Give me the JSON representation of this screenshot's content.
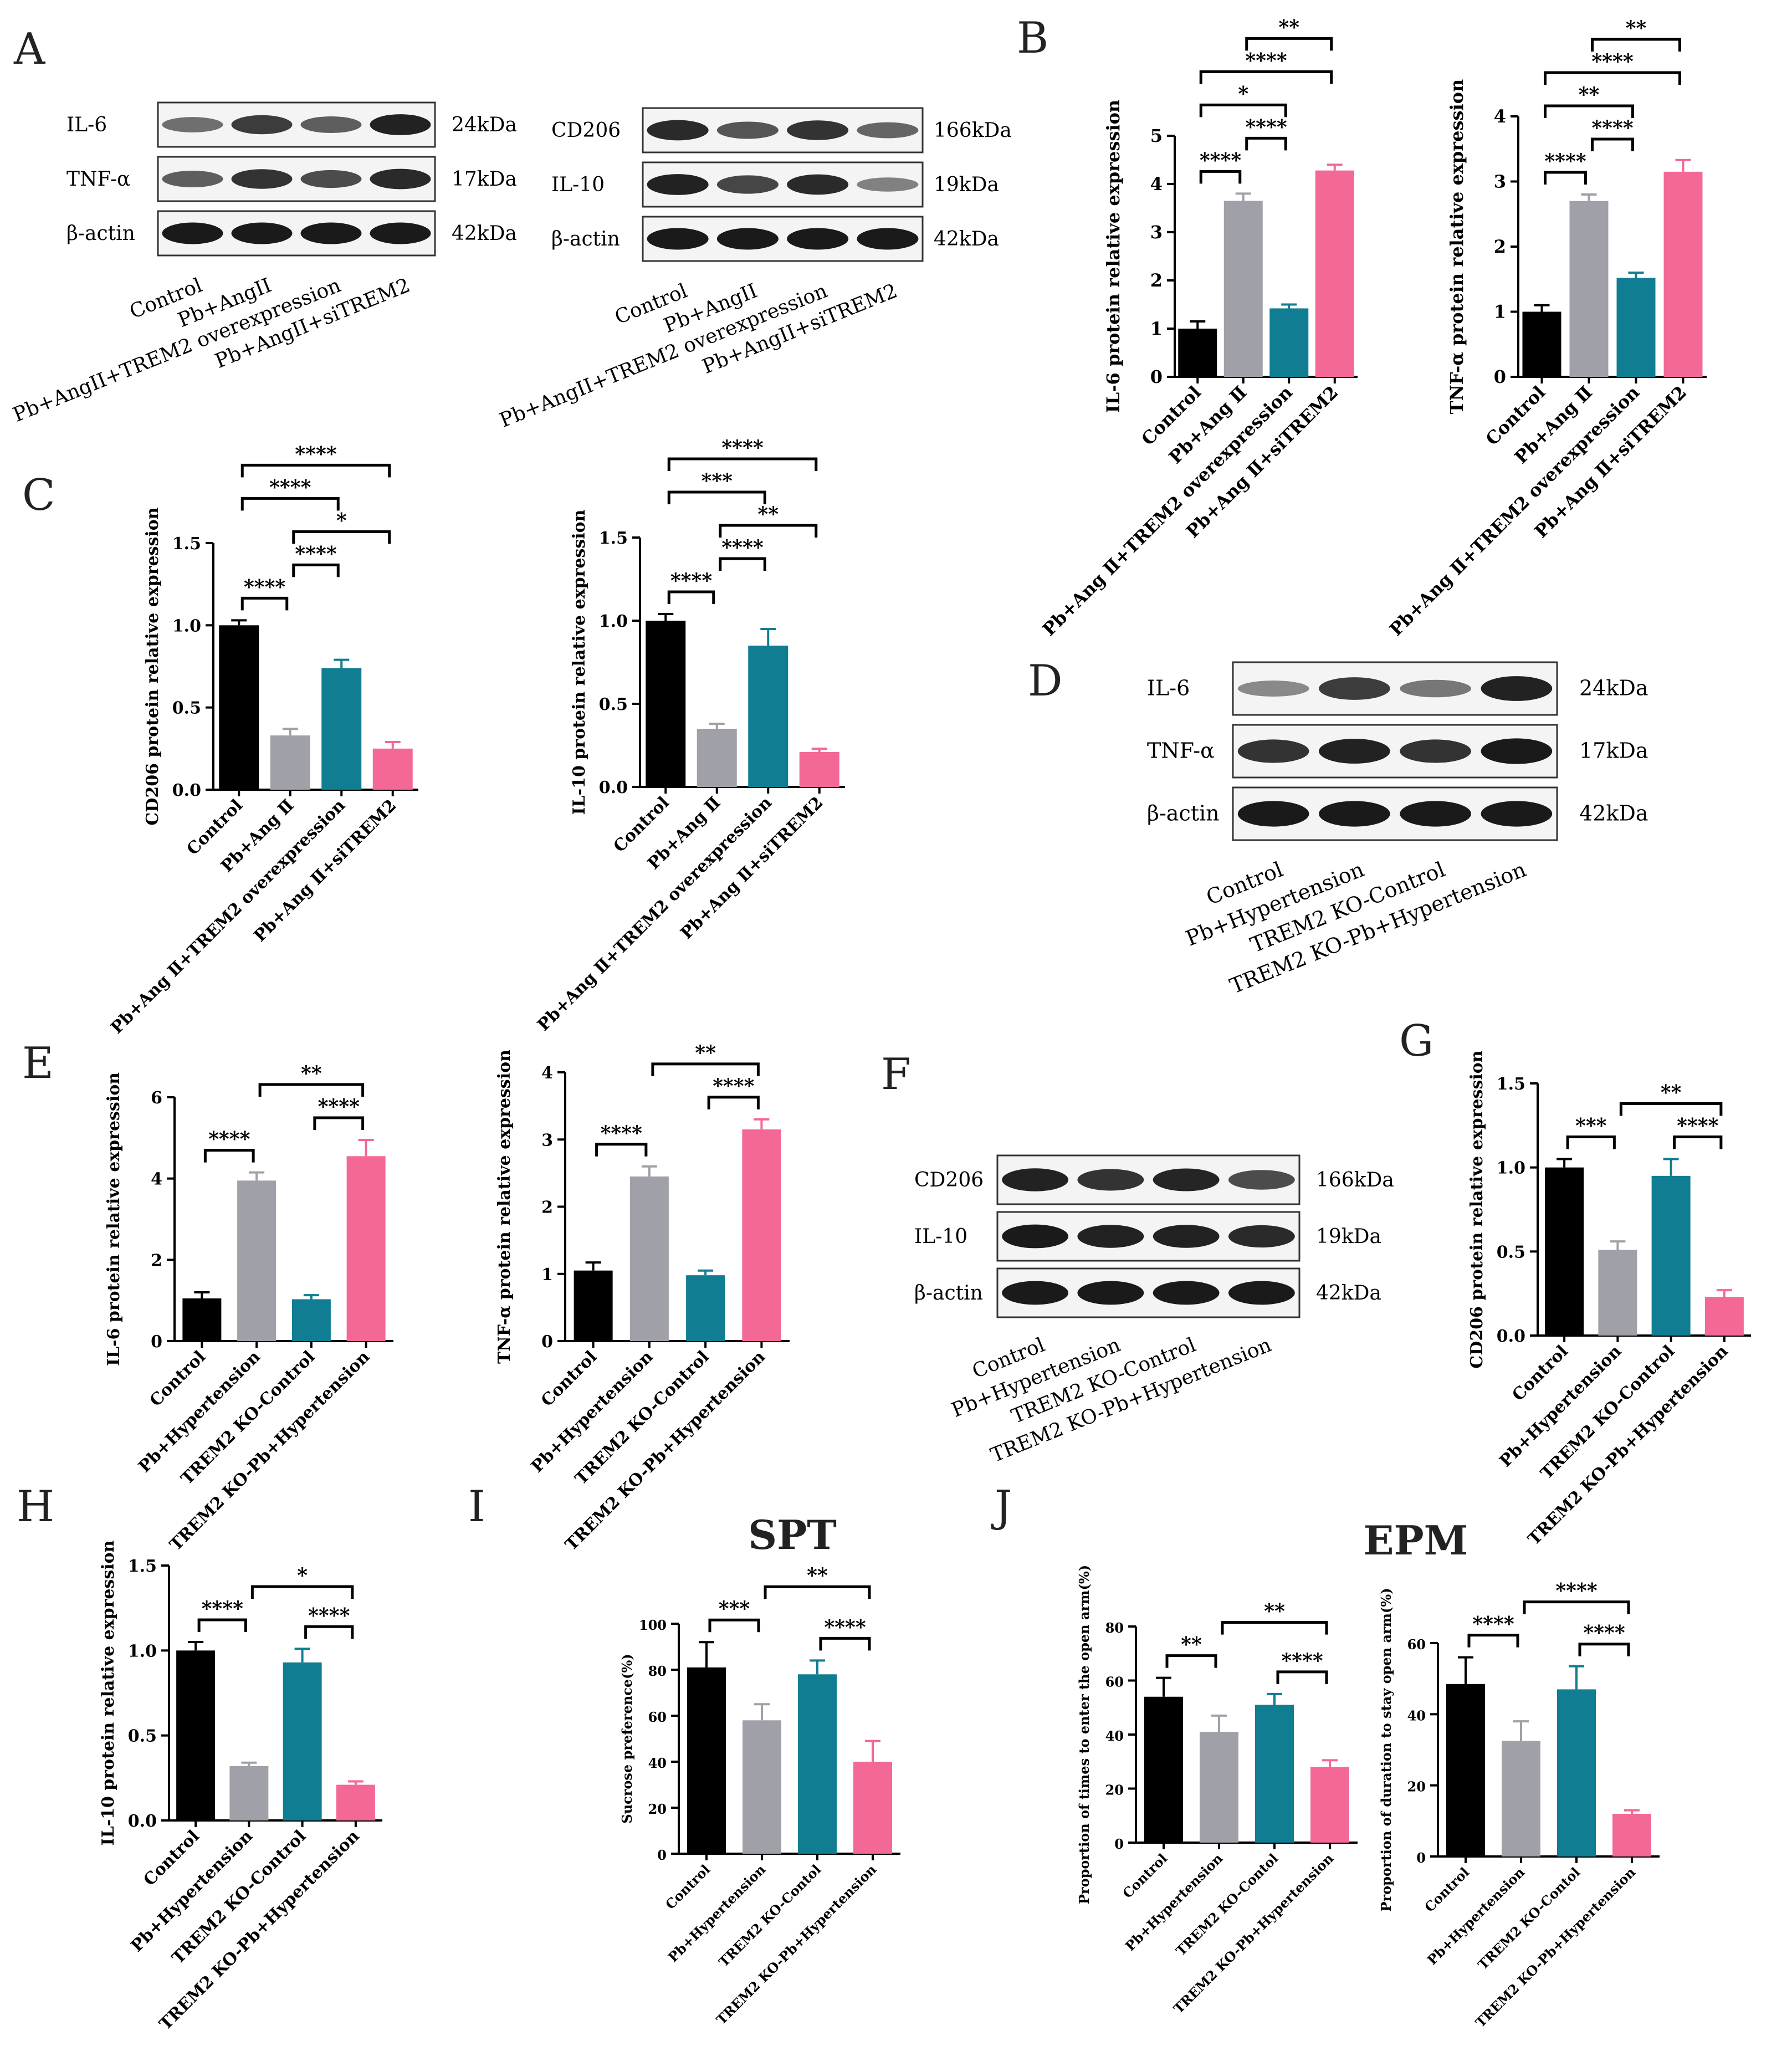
{
  "colors": {
    "black": "#000000",
    "grey": "#A0A0A8",
    "teal": "#117D92",
    "pink": "#F46895",
    "band": "#111111"
  },
  "blots": [
    {
      "panel": "A",
      "rows": [
        {
          "label": "IL-6",
          "kda": "24kDa",
          "int": [
            0.45,
            0.75,
            0.55,
            0.9
          ]
        },
        {
          "label": "TNF-α",
          "kda": "17kDa",
          "int": [
            0.55,
            0.8,
            0.65,
            0.85
          ]
        },
        {
          "label": "β-actin",
          "kda": "42kDa",
          "int": [
            0.95,
            0.95,
            0.95,
            0.95
          ]
        }
      ],
      "lanes": [
        "Control",
        "Pb+AngII",
        "Pb+AngII+TREM2  overexpression",
        "Pb+AngII+siTREM2"
      ]
    },
    {
      "panel": "",
      "rows": [
        {
          "label": "CD206",
          "kda": "166kDa",
          "int": [
            0.85,
            0.6,
            0.8,
            0.5
          ]
        },
        {
          "label": "IL-10",
          "kda": "19kDa",
          "int": [
            0.9,
            0.7,
            0.85,
            0.35
          ]
        },
        {
          "label": "β-actin",
          "kda": "42kDa",
          "int": [
            0.95,
            0.95,
            0.95,
            0.95
          ]
        }
      ],
      "lanes": [
        "Control",
        "Pb+AngII",
        "Pb+AngII+TREM2  overexpression",
        "Pb+AngII+siTREM2"
      ]
    },
    {
      "panel": "D",
      "rows": [
        {
          "label": "IL-6",
          "kda": "24kDa",
          "int": [
            0.3,
            0.75,
            0.4,
            0.9
          ]
        },
        {
          "label": "TNF-α",
          "kda": "17kDa",
          "int": [
            0.8,
            0.9,
            0.8,
            0.95
          ]
        },
        {
          "label": "β-actin",
          "kda": "42kDa",
          "int": [
            0.95,
            0.95,
            0.95,
            0.95
          ]
        }
      ],
      "lanes": [
        "Control",
        "Pb+Hypertension",
        "TREM2 KO-Control",
        "TREM2 KO-Pb+Hypertension"
      ]
    },
    {
      "panel": "F",
      "rows": [
        {
          "label": "CD206",
          "kda": "166kDa",
          "int": [
            0.9,
            0.8,
            0.88,
            0.65
          ]
        },
        {
          "label": "IL-10",
          "kda": "19kDa",
          "int": [
            0.95,
            0.9,
            0.9,
            0.85
          ]
        },
        {
          "label": "β-actin",
          "kda": "42kDa",
          "int": [
            0.95,
            0.95,
            0.95,
            0.95
          ]
        }
      ],
      "lanes": [
        "Control",
        "Pb+Hypertension",
        "TREM2 KO-Control",
        "TREM2 KO-Pb+Hypertension"
      ]
    }
  ],
  "chart_data": [
    {
      "panel": "B",
      "type": "bar",
      "ylabel": "IL-6 protein relative expression",
      "ylim": [
        0,
        5
      ],
      "ticks": [
        "0",
        "1",
        "2",
        "3",
        "4",
        "5"
      ],
      "categories": [
        "Control",
        "Pb+Ang Ⅱ",
        "Pb+Ang Ⅱ+TREM2 overexpression",
        "Pb+Ang Ⅱ+siTREM2"
      ],
      "values": [
        1.0,
        3.65,
        1.42,
        4.28
      ],
      "errors": [
        0.15,
        0.15,
        0.08,
        0.12
      ],
      "sig": [
        {
          "a": 0,
          "b": 1,
          "text": "****"
        },
        {
          "a": 1,
          "b": 2,
          "text": "****"
        },
        {
          "a": 0,
          "b": 2,
          "text": "*"
        },
        {
          "a": 0,
          "b": 3,
          "text": "****"
        },
        {
          "a": 1,
          "b": 3,
          "text": "**"
        }
      ]
    },
    {
      "panel": "",
      "type": "bar",
      "ylabel": "TNF-α protein relative expression",
      "ylim": [
        0,
        4
      ],
      "ticks": [
        "0",
        "1",
        "2",
        "3",
        "4"
      ],
      "categories": [
        "Control",
        "Pb+Ang Ⅱ",
        "Pb+Ang Ⅱ+TREM2 overexpression",
        "Pb+Ang Ⅱ+siTREM2"
      ],
      "values": [
        1.0,
        2.7,
        1.52,
        3.15
      ],
      "errors": [
        0.1,
        0.1,
        0.08,
        0.18
      ],
      "sig": [
        {
          "a": 0,
          "b": 1,
          "text": "****"
        },
        {
          "a": 1,
          "b": 2,
          "text": "****"
        },
        {
          "a": 0,
          "b": 2,
          "text": "**"
        },
        {
          "a": 0,
          "b": 3,
          "text": "****"
        },
        {
          "a": 1,
          "b": 3,
          "text": "**"
        }
      ]
    },
    {
      "panel": "C",
      "type": "bar",
      "ylabel": "CD206 protein relative expression",
      "ylim": [
        0,
        1.5
      ],
      "ticks": [
        "0.0",
        "0.5",
        "1.0",
        "1.5"
      ],
      "categories": [
        "Control",
        "Pb+Ang Ⅱ",
        "Pb+Ang Ⅱ+TREM2 overexpression",
        "Pb+Ang Ⅱ+siTREM2"
      ],
      "values": [
        1.0,
        0.33,
        0.74,
        0.25
      ],
      "errors": [
        0.03,
        0.04,
        0.05,
        0.04
      ],
      "sig": [
        {
          "a": 0,
          "b": 1,
          "text": "****"
        },
        {
          "a": 1,
          "b": 2,
          "text": "****"
        },
        {
          "a": 1,
          "b": 3,
          "text": "*"
        },
        {
          "a": 0,
          "b": 2,
          "text": "****"
        },
        {
          "a": 0,
          "b": 3,
          "text": "****"
        }
      ]
    },
    {
      "panel": "",
      "type": "bar",
      "ylabel": "IL-10 protein relative expression",
      "ylim": [
        0,
        1.5
      ],
      "ticks": [
        "0.0",
        "0.5",
        "1.0",
        "1.5"
      ],
      "categories": [
        "Control",
        "Pb+Ang Ⅱ",
        "Pb+Ang Ⅱ+TREM2 overexpression",
        "Pb+Ang Ⅱ+siTREM2"
      ],
      "values": [
        1.0,
        0.35,
        0.85,
        0.21
      ],
      "errors": [
        0.04,
        0.03,
        0.1,
        0.02
      ],
      "sig": [
        {
          "a": 0,
          "b": 1,
          "text": "****"
        },
        {
          "a": 1,
          "b": 2,
          "text": "****"
        },
        {
          "a": 1,
          "b": 3,
          "text": "**"
        },
        {
          "a": 0,
          "b": 2,
          "text": "***"
        },
        {
          "a": 0,
          "b": 3,
          "text": "****"
        }
      ]
    },
    {
      "panel": "E",
      "type": "bar",
      "ylabel": "IL-6 protein relative expression",
      "ylim": [
        0,
        6
      ],
      "ticks": [
        "0",
        "2",
        "4",
        "6"
      ],
      "categories": [
        "Control",
        "Pb+Hypertension",
        "TREM2 KO-Control",
        "TREM2 KO-Pb+Hypertension"
      ],
      "values": [
        1.05,
        3.95,
        1.03,
        4.55
      ],
      "errors": [
        0.15,
        0.2,
        0.1,
        0.4
      ],
      "sig": [
        {
          "a": 0,
          "b": 1,
          "text": "****"
        },
        {
          "a": 2,
          "b": 3,
          "text": "****"
        },
        {
          "a": 1,
          "b": 3,
          "text": "**"
        }
      ]
    },
    {
      "panel": "",
      "type": "bar",
      "ylabel": "TNF-α protein relative expression",
      "ylim": [
        0,
        4
      ],
      "ticks": [
        "0",
        "1",
        "2",
        "3",
        "4"
      ],
      "categories": [
        "Control",
        "Pb+Hypertension",
        "TREM2 KO-Control",
        "TREM2 KO-Pb+Hypertension"
      ],
      "values": [
        1.05,
        2.45,
        0.98,
        3.15
      ],
      "errors": [
        0.12,
        0.15,
        0.07,
        0.15
      ],
      "sig": [
        {
          "a": 0,
          "b": 1,
          "text": "****"
        },
        {
          "a": 2,
          "b": 3,
          "text": "****"
        },
        {
          "a": 1,
          "b": 3,
          "text": "**"
        }
      ]
    },
    {
      "panel": "G",
      "type": "bar",
      "ylabel": "CD206 protein relative expression",
      "ylim": [
        0,
        1.5
      ],
      "ticks": [
        "0.0",
        "0.5",
        "1.0",
        "1.5"
      ],
      "categories": [
        "Control",
        "Pb+Hypertension",
        "TREM2 KO-Control",
        "TREM2 KO-Pb+Hypertension"
      ],
      "values": [
        1.0,
        0.51,
        0.95,
        0.23
      ],
      "errors": [
        0.05,
        0.05,
        0.1,
        0.04
      ],
      "sig": [
        {
          "a": 0,
          "b": 1,
          "text": "***"
        },
        {
          "a": 2,
          "b": 3,
          "text": "****"
        },
        {
          "a": 1,
          "b": 3,
          "text": "**"
        }
      ]
    },
    {
      "panel": "H",
      "type": "bar",
      "ylabel": "IL-10 protein relative expression",
      "ylim": [
        0,
        1.5
      ],
      "ticks": [
        "0.0",
        "0.5",
        "1.0",
        "1.5"
      ],
      "categories": [
        "Control",
        "Pb+Hypertension",
        "TREM2 KO-Control",
        "TREM2 KO-Pb+Hypertension"
      ],
      "values": [
        1.0,
        0.32,
        0.93,
        0.21
      ],
      "errors": [
        0.05,
        0.02,
        0.08,
        0.02
      ],
      "sig": [
        {
          "a": 0,
          "b": 1,
          "text": "****"
        },
        {
          "a": 2,
          "b": 3,
          "text": "****"
        },
        {
          "a": 1,
          "b": 3,
          "text": "*"
        }
      ]
    },
    {
      "panel": "I",
      "type": "bar",
      "title": "SPT",
      "ylabel": "Sucrose preference(%)",
      "ylim": [
        0,
        100
      ],
      "ticks": [
        "0",
        "20",
        "40",
        "60",
        "80",
        "100"
      ],
      "categories": [
        "Control",
        "Pb+Hypertension",
        "TREM2 KO-Contol",
        "TREM2 KO-Pb+Hypertension"
      ],
      "values": [
        81,
        58,
        78,
        40
      ],
      "errors": [
        11,
        7,
        6,
        9
      ],
      "sig": [
        {
          "a": 0,
          "b": 1,
          "text": "***"
        },
        {
          "a": 2,
          "b": 3,
          "text": "****"
        },
        {
          "a": 1,
          "b": 3,
          "text": "**"
        }
      ]
    },
    {
      "panel": "J",
      "type": "bar",
      "title": "EPM",
      "ylabel": "Proportion of times to enter the open arm(%)",
      "ylim": [
        0,
        80
      ],
      "ticks": [
        "0",
        "20",
        "40",
        "60",
        "80"
      ],
      "categories": [
        "Control",
        "Pb+Hypertension",
        "TREM2 KO-Contol",
        "TREM2 KO-Pb+Hypertension"
      ],
      "values": [
        54,
        41,
        51,
        28
      ],
      "errors": [
        7,
        6,
        4,
        2.5
      ],
      "sig": [
        {
          "a": 0,
          "b": 1,
          "text": "**"
        },
        {
          "a": 2,
          "b": 3,
          "text": "****"
        },
        {
          "a": 1,
          "b": 3,
          "text": "**"
        }
      ]
    },
    {
      "panel": "",
      "type": "bar",
      "ylabel": "Proportion of duration to stay open arm(%)",
      "ylim": [
        0,
        60
      ],
      "ticks": [
        "0",
        "20",
        "40",
        "60"
      ],
      "categories": [
        "Control",
        "Pb+Hypertension",
        "TREM2 KO-Contol",
        "TREM2 KO-Pb+Hypertension"
      ],
      "values": [
        48.5,
        32.5,
        47,
        12
      ],
      "errors": [
        7.5,
        5.5,
        6.5,
        1
      ],
      "sig": [
        {
          "a": 0,
          "b": 1,
          "text": "****"
        },
        {
          "a": 2,
          "b": 3,
          "text": "****"
        },
        {
          "a": 1,
          "b": 3,
          "text": "****"
        }
      ]
    }
  ]
}
